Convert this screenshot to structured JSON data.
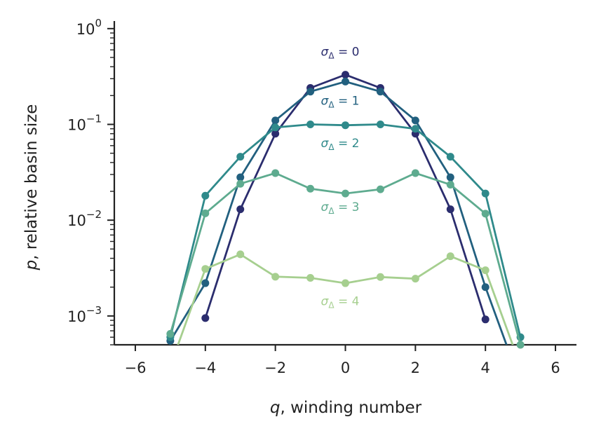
{
  "chart_data": {
    "type": "line",
    "xlabel_var": "q",
    "xlabel_text": ", winding number",
    "ylabel_var": "p",
    "ylabel_text": ", relative basin size",
    "xlim": [
      -6.6,
      6.6
    ],
    "ylim": [
      0.0005,
      1.2
    ],
    "yscale": "log",
    "grid": false,
    "x_ticks": [
      -6,
      -4,
      -2,
      0,
      2,
      4,
      6
    ],
    "x_tick_labels": [
      "−6",
      "−4",
      "−2",
      "0",
      "2",
      "4",
      "6"
    ],
    "y_ticks": [
      {
        "value": 1,
        "base": "10",
        "exp": "0"
      },
      {
        "value": 0.1,
        "base": "10",
        "exp": "−1"
      },
      {
        "value": 0.01,
        "base": "10",
        "exp": "−2"
      },
      {
        "value": 0.001,
        "base": "10",
        "exp": "−3"
      }
    ],
    "series": [
      {
        "label_sym": "σ",
        "label_sub": "Δ",
        "label_val": " = 0",
        "color": "#2b2d6e",
        "x": [
          -4,
          -3,
          -2,
          -1,
          0,
          1,
          2,
          3,
          4
        ],
        "y": [
          0.00095,
          0.013,
          0.08,
          0.24,
          0.33,
          0.24,
          0.08,
          0.013,
          0.00092
        ]
      },
      {
        "label_sym": "σ",
        "label_sub": "Δ",
        "label_val": " = 1",
        "color": "#22607f",
        "x": [
          -5,
          -4,
          -3,
          -2,
          -1,
          0,
          1,
          2,
          3,
          4,
          5
        ],
        "y": [
          0.00055,
          0.0022,
          0.028,
          0.11,
          0.22,
          0.28,
          0.22,
          0.11,
          0.028,
          0.002,
          0.0002
        ]
      },
      {
        "label_sym": "σ",
        "label_sub": "Δ",
        "label_val": " = 2",
        "color": "#2f8a8b",
        "x": [
          -5,
          -4,
          -3,
          -2,
          -1,
          0,
          1,
          2,
          3,
          4,
          5
        ],
        "y": [
          0.0006,
          0.018,
          0.046,
          0.093,
          0.1,
          0.098,
          0.1,
          0.09,
          0.046,
          0.019,
          0.0006
        ]
      },
      {
        "label_sym": "σ",
        "label_sub": "Δ",
        "label_val": " = 3",
        "color": "#5eab8f",
        "x": [
          -5,
          -4,
          -3,
          -2,
          -1,
          0,
          1,
          2,
          3,
          4,
          5
        ],
        "y": [
          0.00065,
          0.0118,
          0.024,
          0.031,
          0.0213,
          0.019,
          0.021,
          0.031,
          0.0235,
          0.0117,
          0.0005
        ]
      },
      {
        "label_sym": "σ",
        "label_sub": "Δ",
        "label_val": " = 4",
        "color": "#a6cf8f",
        "x": [
          -5,
          -4,
          -3,
          -2,
          -1,
          0,
          1,
          2,
          3,
          4,
          5
        ],
        "y": [
          0.0003,
          0.0031,
          0.0044,
          0.00257,
          0.0025,
          0.0022,
          0.00255,
          0.00245,
          0.0042,
          0.003,
          0.0003
        ]
      }
    ],
    "annotations_y": [
      0.52,
      0.16,
      0.058,
      0.0125,
      0.0013
    ],
    "annotations_x": -0.7
  }
}
